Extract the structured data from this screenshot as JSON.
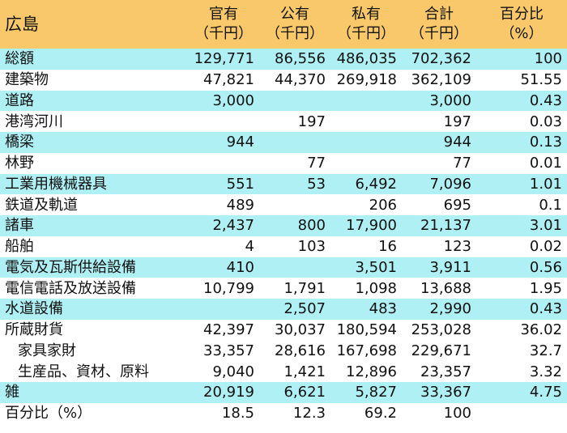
{
  "header": {
    "title": "広島",
    "columns": [
      {
        "line1": "官有",
        "line2": "（千円）"
      },
      {
        "line1": "公有",
        "line2": "（千円）"
      },
      {
        "line1": "私有",
        "line2": "（千円）"
      },
      {
        "line1": "合計",
        "line2": "（千円）"
      },
      {
        "line1": "百分比",
        "line2": "（%）"
      }
    ]
  },
  "colors": {
    "header_bg": "#f9c86a",
    "row_highlight": "#aef0f4"
  },
  "rows": [
    {
      "label": "総額",
      "indent": false,
      "highlight": true,
      "values": [
        "129,771",
        "86,556",
        "486,035",
        "702,362",
        "100"
      ]
    },
    {
      "label": "建築物",
      "indent": false,
      "highlight": false,
      "values": [
        "47,821",
        "44,370",
        "269,918",
        "362,109",
        "51.55"
      ]
    },
    {
      "label": "道路",
      "indent": false,
      "highlight": true,
      "values": [
        "3,000",
        "",
        "",
        "3,000",
        "0.43"
      ]
    },
    {
      "label": "港湾河川",
      "indent": false,
      "highlight": false,
      "values": [
        "",
        "197",
        "",
        "197",
        "0.03"
      ]
    },
    {
      "label": "橋梁",
      "indent": false,
      "highlight": true,
      "values": [
        "944",
        "",
        "",
        "944",
        "0.13"
      ]
    },
    {
      "label": "林野",
      "indent": false,
      "highlight": false,
      "values": [
        "",
        "77",
        "",
        "77",
        "0.01"
      ]
    },
    {
      "label": "工業用機械器具",
      "indent": false,
      "highlight": true,
      "values": [
        "551",
        "53",
        "6,492",
        "7,096",
        "1.01"
      ]
    },
    {
      "label": "鉄道及軌道",
      "indent": false,
      "highlight": false,
      "values": [
        "489",
        "",
        "206",
        "695",
        "0.1"
      ]
    },
    {
      "label": "諸車",
      "indent": false,
      "highlight": true,
      "values": [
        "2,437",
        "800",
        "17,900",
        "21,137",
        "3.01"
      ]
    },
    {
      "label": "船舶",
      "indent": false,
      "highlight": false,
      "values": [
        "4",
        "103",
        "16",
        "123",
        "0.02"
      ]
    },
    {
      "label": "電気及瓦斯供給設備",
      "indent": false,
      "highlight": true,
      "values": [
        "410",
        "",
        "3,501",
        "3,911",
        "0.56"
      ]
    },
    {
      "label": "電信電話及放送設備",
      "indent": false,
      "highlight": false,
      "values": [
        "10,799",
        "1,791",
        "1,098",
        "13,688",
        "1.95"
      ]
    },
    {
      "label": "水道設備",
      "indent": false,
      "highlight": true,
      "values": [
        "",
        "2,507",
        "483",
        "2,990",
        "0.43"
      ]
    },
    {
      "label": "所蔵財貨",
      "indent": false,
      "highlight": false,
      "values": [
        "42,397",
        "30,037",
        "180,594",
        "253,028",
        "36.02"
      ]
    },
    {
      "label": "家具家財",
      "indent": true,
      "highlight": false,
      "values": [
        "33,357",
        "28,616",
        "167,698",
        "229,671",
        "32.7"
      ]
    },
    {
      "label": "生産品、資材、原料",
      "indent": true,
      "highlight": false,
      "values": [
        "9,040",
        "1,421",
        "12,896",
        "23,357",
        "3.32"
      ]
    },
    {
      "label": "雑",
      "indent": false,
      "highlight": true,
      "values": [
        "20,919",
        "6,621",
        "5,827",
        "33,367",
        "4.75"
      ]
    },
    {
      "label": "百分比（%）",
      "indent": false,
      "highlight": false,
      "values": [
        "18.5",
        "12.3",
        "69.2",
        "100",
        ""
      ]
    }
  ]
}
